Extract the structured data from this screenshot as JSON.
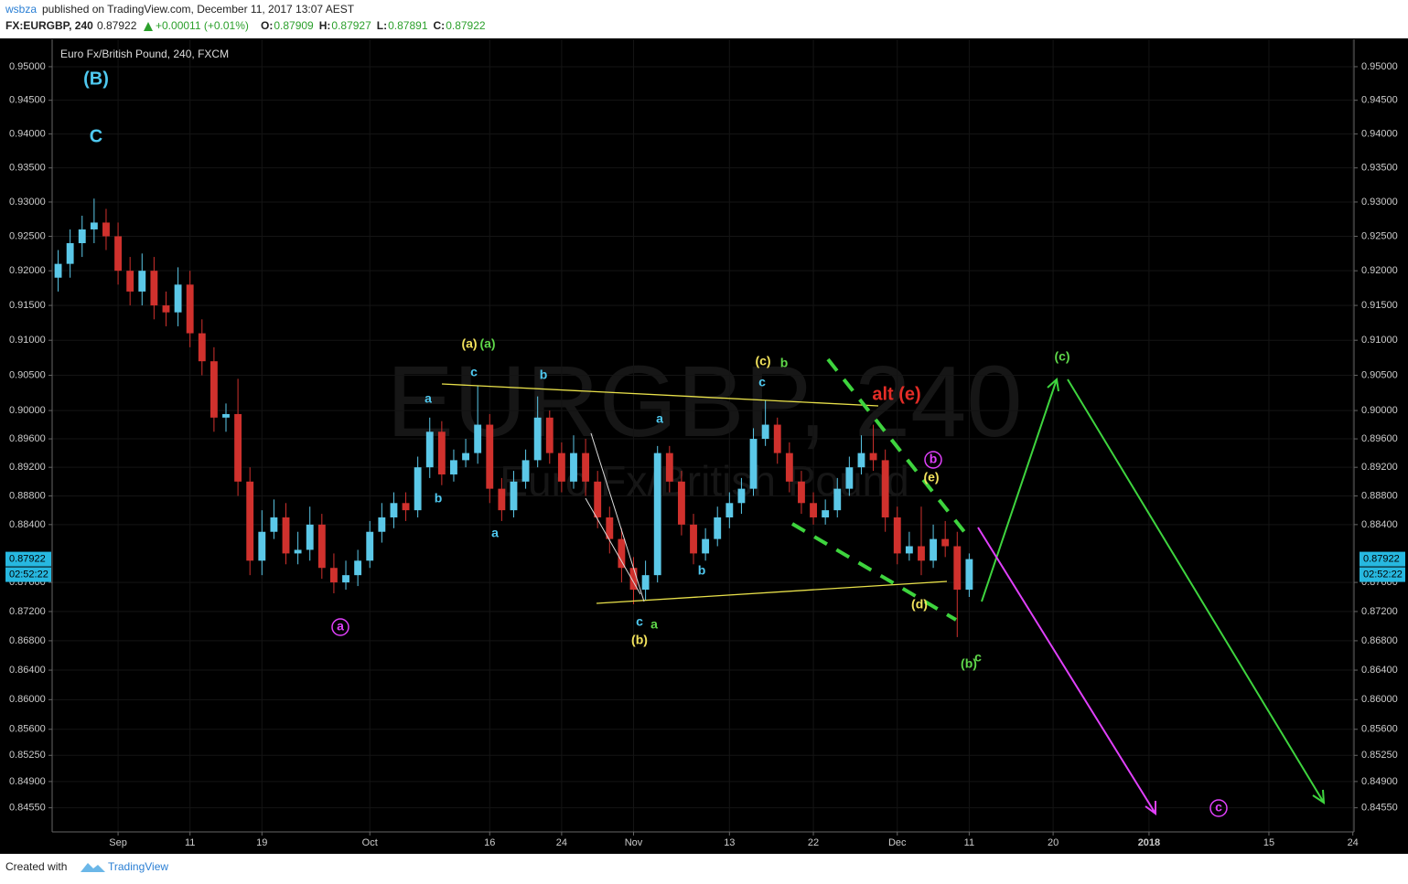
{
  "header": {
    "user": "wsbza",
    "published": "published on TradingView.com, December 11, 2017 13:07 AEST",
    "symbol": "FX:EURGBP, 240",
    "last": "0.87922",
    "change": "+0.00011 (+0.01%)",
    "ohlc": [
      {
        "k": "O:",
        "v": "0.87909"
      },
      {
        "k": "H:",
        "v": "0.87927"
      },
      {
        "k": "L:",
        "v": "0.87891"
      },
      {
        "k": "C:",
        "v": "0.87922"
      }
    ]
  },
  "footer": {
    "created": "Created with",
    "brand": "TradingView"
  },
  "chart_data": {
    "type": "candlestick",
    "title": "Euro Fx/British Pound, 240, FXCM",
    "watermark": "EURGBP, 240",
    "watermark_sub": "Euro Fx/British Pound",
    "log": true,
    "up_color": "#5bc8e8",
    "down_color": "#d0312d",
    "last_price": 0.87922,
    "countdown": "02:52:22",
    "x": [
      -5,
      -4,
      -3,
      -2,
      -1,
      0,
      1,
      2,
      3,
      4,
      5,
      6,
      7,
      8,
      9,
      10,
      11,
      12,
      13,
      14,
      15,
      16,
      17,
      18,
      19,
      20,
      21,
      22,
      23,
      24,
      25,
      26,
      27,
      28,
      29,
      30,
      31,
      32,
      33,
      34,
      35,
      36,
      37,
      38,
      39,
      40,
      41,
      42,
      43,
      44,
      45,
      46,
      47,
      48,
      49,
      50,
      51,
      52,
      53,
      54,
      55,
      56,
      57,
      58,
      59,
      60,
      61,
      62,
      63,
      64,
      65,
      66,
      67,
      68,
      69,
      70,
      71
    ],
    "open": [
      0.919,
      0.921,
      0.924,
      0.926,
      0.927,
      0.925,
      0.92,
      0.917,
      0.92,
      0.915,
      0.914,
      0.918,
      0.911,
      0.907,
      0.899,
      0.8995,
      0.89,
      0.879,
      0.883,
      0.885,
      0.88,
      0.8805,
      0.884,
      0.878,
      0.876,
      0.877,
      0.879,
      0.883,
      0.885,
      0.887,
      0.886,
      0.892,
      0.897,
      0.891,
      0.893,
      0.894,
      0.898,
      0.889,
      0.886,
      0.89,
      0.893,
      0.899,
      0.894,
      0.89,
      0.894,
      0.89,
      0.885,
      0.882,
      0.878,
      0.875,
      0.877,
      0.894,
      0.89,
      0.884,
      0.88,
      0.882,
      0.885,
      0.887,
      0.889,
      0.896,
      0.898,
      0.894,
      0.89,
      0.887,
      0.885,
      0.886,
      0.889,
      0.892,
      0.894,
      0.893,
      0.885,
      0.88,
      0.881,
      0.879,
      0.882,
      0.881,
      0.875
    ],
    "high": [
      0.923,
      0.926,
      0.928,
      0.9305,
      0.929,
      0.927,
      0.922,
      0.9225,
      0.922,
      0.917,
      0.9205,
      0.92,
      0.913,
      0.909,
      0.901,
      0.9045,
      0.892,
      0.886,
      0.8875,
      0.887,
      0.883,
      0.8865,
      0.8855,
      0.88,
      0.879,
      0.8805,
      0.8845,
      0.887,
      0.8885,
      0.8885,
      0.8935,
      0.899,
      0.8985,
      0.8945,
      0.896,
      0.9035,
      0.8995,
      0.8905,
      0.8915,
      0.8945,
      0.902,
      0.9,
      0.8955,
      0.8965,
      0.896,
      0.8915,
      0.8865,
      0.8835,
      0.8795,
      0.879,
      0.895,
      0.895,
      0.8915,
      0.8855,
      0.8835,
      0.8865,
      0.8885,
      0.8905,
      0.8975,
      0.9015,
      0.899,
      0.8955,
      0.8915,
      0.8885,
      0.8875,
      0.8905,
      0.8935,
      0.8965,
      0.898,
      0.8945,
      0.8865,
      0.883,
      0.8865,
      0.884,
      0.8845,
      0.883,
      0.88
    ],
    "low": [
      0.917,
      0.919,
      0.922,
      0.924,
      0.923,
      0.918,
      0.915,
      0.915,
      0.913,
      0.912,
      0.912,
      0.909,
      0.905,
      0.897,
      0.897,
      0.888,
      0.877,
      0.877,
      0.882,
      0.8785,
      0.8785,
      0.879,
      0.8765,
      0.8745,
      0.875,
      0.8755,
      0.878,
      0.8815,
      0.8835,
      0.8845,
      0.885,
      0.8905,
      0.8895,
      0.89,
      0.892,
      0.8925,
      0.887,
      0.8845,
      0.885,
      0.889,
      0.892,
      0.8925,
      0.8885,
      0.889,
      0.888,
      0.8835,
      0.88,
      0.876,
      0.873,
      0.8735,
      0.876,
      0.8885,
      0.8825,
      0.8785,
      0.879,
      0.881,
      0.8835,
      0.8855,
      0.888,
      0.895,
      0.8925,
      0.8885,
      0.8855,
      0.884,
      0.884,
      0.885,
      0.888,
      0.891,
      0.8915,
      0.883,
      0.8785,
      0.879,
      0.877,
      0.878,
      0.8795,
      0.8685,
      0.874
    ],
    "close": [
      0.921,
      0.924,
      0.926,
      0.927,
      0.925,
      0.92,
      0.917,
      0.92,
      0.915,
      0.914,
      0.918,
      0.911,
      0.907,
      0.899,
      0.8995,
      0.89,
      0.879,
      0.883,
      0.885,
      0.88,
      0.8805,
      0.884,
      0.878,
      0.876,
      0.877,
      0.879,
      0.883,
      0.885,
      0.887,
      0.886,
      0.892,
      0.897,
      0.891,
      0.893,
      0.894,
      0.898,
      0.889,
      0.886,
      0.89,
      0.893,
      0.899,
      0.894,
      0.89,
      0.894,
      0.89,
      0.885,
      0.882,
      0.878,
      0.875,
      0.877,
      0.894,
      0.89,
      0.884,
      0.88,
      0.882,
      0.885,
      0.887,
      0.889,
      0.896,
      0.898,
      0.894,
      0.89,
      0.887,
      0.885,
      0.886,
      0.889,
      0.892,
      0.894,
      0.893,
      0.885,
      0.88,
      0.881,
      0.879,
      0.882,
      0.881,
      0.875,
      0.87922
    ],
    "xlim": [
      -5.5,
      103.1
    ],
    "xticks": [
      {
        "value": 0,
        "label": "Sep"
      },
      {
        "value": 6,
        "label": "11"
      },
      {
        "value": 12,
        "label": "19"
      },
      {
        "value": 21,
        "label": "Oct"
      },
      {
        "value": 31,
        "label": "16"
      },
      {
        "value": 37,
        "label": "24"
      },
      {
        "value": 43,
        "label": "Nov"
      },
      {
        "value": 51,
        "label": "13"
      },
      {
        "value": 58,
        "label": "22"
      },
      {
        "value": 65,
        "label": "Dec"
      },
      {
        "value": 71,
        "label": "11"
      },
      {
        "value": 78,
        "label": "20"
      },
      {
        "value": 86,
        "label": "2018"
      },
      {
        "value": 96,
        "label": "15"
      },
      {
        "value": 103,
        "label": "24"
      }
    ],
    "ylim": [
      0.8423,
      0.9541
    ],
    "yticks": [
      {
        "value": 0.95,
        "label": "0.95000"
      },
      {
        "value": 0.945,
        "label": "0.94500"
      },
      {
        "value": 0.94,
        "label": "0.94000"
      },
      {
        "value": 0.935,
        "label": "0.93500"
      },
      {
        "value": 0.93,
        "label": "0.93000"
      },
      {
        "value": 0.925,
        "label": "0.92500"
      },
      {
        "value": 0.92,
        "label": "0.92000"
      },
      {
        "value": 0.915,
        "label": "0.91500"
      },
      {
        "value": 0.91,
        "label": "0.91000"
      },
      {
        "value": 0.905,
        "label": "0.90500"
      },
      {
        "value": 0.9,
        "label": "0.90000"
      },
      {
        "value": 0.896,
        "label": "0.89600"
      },
      {
        "value": 0.892,
        "label": "0.89200"
      },
      {
        "value": 0.888,
        "label": "0.88800"
      },
      {
        "value": 0.884,
        "label": "0.88400"
      },
      {
        "value": 0.876,
        "label": "0.87600"
      },
      {
        "value": 0.872,
        "label": "0.87200"
      },
      {
        "value": 0.868,
        "label": "0.86800"
      },
      {
        "value": 0.864,
        "label": "0.86400"
      },
      {
        "value": 0.86,
        "label": "0.86000"
      },
      {
        "value": 0.856,
        "label": "0.85600"
      },
      {
        "value": 0.8525,
        "label": "0.85250"
      },
      {
        "value": 0.849,
        "label": "0.84900"
      },
      {
        "value": 0.8455,
        "label": "0.84550"
      }
    ],
    "annotations": [
      {
        "text": "(B)",
        "color": "#4fc9f0"
      },
      {
        "text": "C",
        "color": "#4fc9f0"
      },
      {
        "text": "a",
        "color": "#e040fb"
      },
      {
        "text": "(a)",
        "color": "#f2e25c"
      },
      {
        "text": "(a)",
        "color": "#5fd84a"
      },
      {
        "text": "c",
        "color": "#4fc9f0"
      },
      {
        "text": "b",
        "color": "#4fc9f0"
      },
      {
        "text": "a",
        "color": "#4fc9f0"
      },
      {
        "text": "b",
        "color": "#4fc9f0"
      },
      {
        "text": "a",
        "color": "#4fc9f0"
      },
      {
        "text": "(c)",
        "color": "#f2e25c"
      },
      {
        "text": "b",
        "color": "#5fd84a"
      },
      {
        "text": "c",
        "color": "#4fc9f0"
      },
      {
        "text": "a",
        "color": "#4fc9f0"
      },
      {
        "text": "b",
        "color": "#4fc9f0"
      },
      {
        "text": "c",
        "color": "#4fc9f0"
      },
      {
        "text": "a",
        "color": "#5fd84a"
      },
      {
        "text": "(b)",
        "color": "#f2e25c"
      },
      {
        "text": "alt (e)",
        "color": "#e52d27"
      },
      {
        "text": "b",
        "color": "#e040fb"
      },
      {
        "text": "(e)",
        "color": "#f2e25c"
      },
      {
        "text": "(d)",
        "color": "#f2e25c"
      },
      {
        "text": "(b)",
        "color": "#5fd84a"
      },
      {
        "text": "c",
        "color": "#5fd84a"
      },
      {
        "text": "(c)",
        "color": "#5fd84a"
      },
      {
        "text": "c",
        "color": "#e040fb"
      }
    ]
  }
}
